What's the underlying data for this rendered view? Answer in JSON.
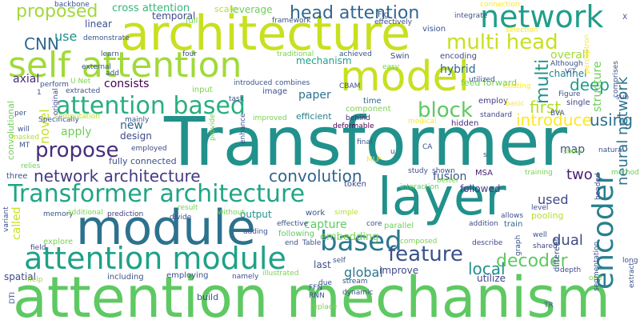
{
  "words": [
    {
      "text": "Transformer",
      "color": "#21918c"
    },
    {
      "text": "attention mechanism",
      "color": "#5ec962"
    },
    {
      "text": "architecture",
      "color": "#c8e020"
    },
    {
      "text": "module",
      "color": "#2c728e"
    },
    {
      "text": "layer",
      "color": "#21918c"
    },
    {
      "text": "self attention",
      "color": "#a0da39"
    },
    {
      "text": "model",
      "color": "#c8e020"
    },
    {
      "text": "Transformer architecture",
      "color": "#21a585"
    },
    {
      "text": "attention module",
      "color": "#1fa187"
    },
    {
      "text": "network",
      "color": "#1f9e89"
    },
    {
      "text": "attention based",
      "color": "#29af7f"
    },
    {
      "text": "encoder",
      "color": "#277f8e"
    },
    {
      "text": "based",
      "color": "#2a788e"
    },
    {
      "text": "feature",
      "color": "#3b528b"
    },
    {
      "text": "block",
      "color": "#5ec962"
    },
    {
      "text": "head attention",
      "color": "#31688e"
    },
    {
      "text": "multi head",
      "color": "#c8e020"
    },
    {
      "text": "propose",
      "color": "#472d7b"
    },
    {
      "text": "network architecture",
      "color": "#443983"
    },
    {
      "text": "decoder",
      "color": "#5ec962"
    },
    {
      "text": "neural network",
      "color": "#2c728e"
    },
    {
      "text": "proposed",
      "color": "#a0da39"
    },
    {
      "text": "CNN",
      "color": "#31688e"
    },
    {
      "text": "convolution",
      "color": "#33638d"
    },
    {
      "text": "local",
      "color": "#21918c"
    },
    {
      "text": "introduce",
      "color": "#fde725"
    },
    {
      "text": "using",
      "color": "#2c728e"
    },
    {
      "text": "first",
      "color": "#b5de2b"
    },
    {
      "text": "multi",
      "color": "#21918c"
    },
    {
      "text": "deep",
      "color": "#1f9e89"
    },
    {
      "text": "dual",
      "color": "#3e4989"
    },
    {
      "text": "two",
      "color": "#482173"
    },
    {
      "text": "cross attention",
      "color": "#35b779"
    },
    {
      "text": "consists",
      "color": "#440154"
    },
    {
      "text": "novel",
      "color": "#c8e020"
    },
    {
      "text": "use",
      "color": "#21918c"
    },
    {
      "text": "mechanism",
      "color": "#1fa187"
    },
    {
      "text": "hybrid",
      "color": "#31688e"
    },
    {
      "text": "paper",
      "color": "#2c728e"
    },
    {
      "text": "fusion",
      "color": "#3b528b"
    },
    {
      "text": "global",
      "color": "#2a788e"
    },
    {
      "text": "efficient",
      "color": "#26828e"
    },
    {
      "text": "design",
      "color": "#3e4989"
    },
    {
      "text": "new",
      "color": "#31688e"
    },
    {
      "text": "apply",
      "color": "#6ece58"
    },
    {
      "text": "structure",
      "color": "#6ece58"
    },
    {
      "text": "map",
      "color": "#3b528b"
    },
    {
      "text": "used",
      "color": "#3e4989"
    },
    {
      "text": "capture",
      "color": "#5ec962"
    },
    {
      "text": "embedding",
      "color": "#7ad151"
    },
    {
      "text": "output",
      "color": "#21918c"
    },
    {
      "text": "last",
      "color": "#3b528b"
    },
    {
      "text": "improve",
      "color": "#3e4989"
    },
    {
      "text": "utilize",
      "color": "#414487"
    },
    {
      "text": "called",
      "color": "#c8e020"
    },
    {
      "text": "spatial",
      "color": "#3e4989"
    },
    {
      "text": "overall",
      "color": "#a0da39"
    },
    {
      "text": "channel",
      "color": "#26828e"
    },
    {
      "text": "followed",
      "color": "#443983"
    },
    {
      "text": "temporal",
      "color": "#3e4989"
    },
    {
      "text": "linear",
      "color": "#3b528b"
    },
    {
      "text": "leverage",
      "color": "#6ece58"
    },
    {
      "text": "scale",
      "color": "#b5de2b"
    },
    {
      "text": "full",
      "color": "#7ad151"
    },
    {
      "text": "Fig",
      "color": "#3b528b"
    },
    {
      "text": "vision",
      "color": "#3b528b"
    },
    {
      "text": "framework",
      "color": "#3b528b"
    },
    {
      "text": "effectively",
      "color": "#3e4989"
    },
    {
      "text": "connection",
      "color": "#fde725"
    },
    {
      "text": "backbone",
      "color": "#3b528b"
    },
    {
      "text": "convolutional",
      "color": "#6ece58"
    },
    {
      "text": "axial",
      "color": "#472d7b"
    },
    {
      "text": "feed forward",
      "color": "#6ece58"
    },
    {
      "text": "Swin",
      "color": "#3e4989"
    },
    {
      "text": "encoding",
      "color": "#3e4989"
    },
    {
      "text": "image",
      "color": "#3b528b"
    },
    {
      "text": "input",
      "color": "#7ad151"
    },
    {
      "text": "time",
      "color": "#31688e"
    },
    {
      "text": "employ",
      "color": "#443983"
    },
    {
      "text": "single",
      "color": "#3e4989"
    },
    {
      "text": "standard",
      "color": "#3e4989"
    },
    {
      "text": "hidden",
      "color": "#472d7b"
    },
    {
      "text": "component",
      "color": "#7ad151"
    },
    {
      "text": "behind",
      "color": "#472d7b"
    },
    {
      "text": "deformable",
      "color": "#440154"
    },
    {
      "text": "MSA",
      "color": "#482173"
    },
    {
      "text": "token",
      "color": "#3e4989"
    },
    {
      "text": "interaction",
      "color": "#5ec962"
    },
    {
      "text": "study",
      "color": "#3b528b"
    },
    {
      "text": "shown",
      "color": "#3b528b"
    },
    {
      "text": "better",
      "color": "#7ad151"
    },
    {
      "text": "training",
      "color": "#7ad151"
    },
    {
      "text": "method",
      "color": "#6ece58"
    },
    {
      "text": "natural",
      "color": "#3b528b"
    },
    {
      "text": "pooling",
      "color": "#b5de2b"
    },
    {
      "text": "level",
      "color": "#3b528b"
    },
    {
      "text": "train",
      "color": "#31688e"
    },
    {
      "text": "well",
      "color": "#3b528b"
    },
    {
      "text": "shared",
      "color": "#3e4989"
    },
    {
      "text": "work",
      "color": "#3b528b"
    },
    {
      "text": "following",
      "color": "#5ec962"
    },
    {
      "text": "effective",
      "color": "#3b528b"
    },
    {
      "text": "adding",
      "color": "#3b528b"
    },
    {
      "text": "simple",
      "color": "#b5de2b"
    },
    {
      "text": "parallel",
      "color": "#6ece58"
    },
    {
      "text": "core",
      "color": "#3b528b"
    },
    {
      "text": "composed",
      "color": "#7ad151"
    },
    {
      "text": "addition",
      "color": "#3e4989"
    },
    {
      "text": "allows",
      "color": "#3b528b"
    },
    {
      "text": "different",
      "color": "#3b528b"
    },
    {
      "text": "memory",
      "color": "#3b528b"
    },
    {
      "text": "prediction",
      "color": "#443983"
    },
    {
      "text": "additional",
      "color": "#7ad151"
    },
    {
      "text": "variant",
      "color": "#3b528b"
    },
    {
      "text": "explore",
      "color": "#7ad151"
    },
    {
      "text": "field",
      "color": "#3e4989"
    },
    {
      "text": "including",
      "color": "#3b528b"
    },
    {
      "text": "employing",
      "color": "#3b528b"
    },
    {
      "text": "build",
      "color": "#3b528b"
    },
    {
      "text": "namely",
      "color": "#3b528b"
    },
    {
      "text": "illustrated",
      "color": "#7ad151"
    },
    {
      "text": "dynamic",
      "color": "#3b528b"
    },
    {
      "text": "stream",
      "color": "#3b528b"
    },
    {
      "text": "replace",
      "color": "#7ad151"
    },
    {
      "text": "FFN",
      "color": "#3b528b"
    },
    {
      "text": "RNN",
      "color": "#3b528b"
    },
    {
      "text": "Table",
      "color": "#3b528b"
    },
    {
      "text": "result",
      "color": "#7ad151"
    },
    {
      "text": "divide",
      "color": "#3b528b"
    },
    {
      "text": "end",
      "color": "#3b528b"
    },
    {
      "text": "due",
      "color": "#3b528b"
    },
    {
      "text": "describe",
      "color": "#3e4989"
    },
    {
      "text": "depth",
      "color": "#3e4989"
    },
    {
      "text": "one",
      "color": "#7ad151"
    },
    {
      "text": "TR",
      "color": "#3b528b"
    },
    {
      "text": "help",
      "color": "#a0da39"
    },
    {
      "text": "DTI",
      "color": "#3b528b"
    },
    {
      "text": "graph",
      "color": "#3b528b"
    },
    {
      "text": "long",
      "color": "#3b528b"
    },
    {
      "text": "extract",
      "color": "#3b528b"
    },
    {
      "text": "segmentation",
      "color": "#3b528b"
    },
    {
      "text": "headed",
      "color": "#3e4989"
    },
    {
      "text": "relies",
      "color": "#6ece58"
    },
    {
      "text": "three",
      "color": "#3b528b"
    },
    {
      "text": "fully connected",
      "color": "#3b528b"
    },
    {
      "text": "employed",
      "color": "#3e4989"
    },
    {
      "text": "mainly",
      "color": "#3b528b"
    },
    {
      "text": "Specifically",
      "color": "#3b528b"
    },
    {
      "text": "computation",
      "color": "#b5de2b"
    },
    {
      "text": "perform",
      "color": "#3b528b"
    },
    {
      "text": "extracted",
      "color": "#3b528b"
    },
    {
      "text": "original",
      "color": "#3e4989"
    },
    {
      "text": "masked",
      "color": "#b5de2b"
    },
    {
      "text": "will",
      "color": "#3b528b"
    },
    {
      "text": "MT",
      "color": "#3b528b"
    },
    {
      "text": "per",
      "color": "#3b528b"
    },
    {
      "text": "U Net",
      "color": "#7ad151"
    },
    {
      "text": "introduced",
      "color": "#3b528b"
    },
    {
      "text": "combines",
      "color": "#3b528b"
    },
    {
      "text": "CBAM",
      "color": "#3b528b"
    },
    {
      "text": "traditional",
      "color": "#7ad151"
    },
    {
      "text": "achieved",
      "color": "#3b528b"
    },
    {
      "text": "easy",
      "color": "#7ad151"
    },
    {
      "text": "four",
      "color": "#3b528b"
    },
    {
      "text": "learn",
      "color": "#3b528b"
    },
    {
      "text": "demonstrate",
      "color": "#3b528b"
    },
    {
      "text": "integrate",
      "color": "#3b528b"
    },
    {
      "text": "selection",
      "color": "#fde725"
    },
    {
      "text": "perceptron",
      "color": "#fde725"
    },
    {
      "text": "Although",
      "color": "#3b528b"
    },
    {
      "text": "ViT",
      "color": "#3b528b"
    },
    {
      "text": "comprises",
      "color": "#3b528b"
    },
    {
      "text": "existing",
      "color": "#fde725"
    },
    {
      "text": "utilized",
      "color": "#3b528b"
    },
    {
      "text": "basic",
      "color": "#fde725"
    },
    {
      "text": "Figure",
      "color": "#3b528b"
    },
    {
      "text": "sub",
      "color": "#3b528b"
    },
    {
      "text": "BVA",
      "color": "#3b528b"
    },
    {
      "text": "show",
      "color": "#7ad151"
    },
    {
      "text": "medical",
      "color": "#fde725"
    },
    {
      "text": "final",
      "color": "#3b528b"
    },
    {
      "text": "CA",
      "color": "#3b528b"
    },
    {
      "text": "MLP",
      "color": "#fde725"
    },
    {
      "text": "enhance",
      "color": "#3b528b"
    },
    {
      "text": "improved",
      "color": "#7ad151"
    },
    {
      "text": "provide",
      "color": "#7ad151"
    },
    {
      "text": "task",
      "color": "#3b528b"
    },
    {
      "text": "external",
      "color": "#3b528b"
    },
    {
      "text": "add",
      "color": "#3b528b"
    },
    {
      "text": "without",
      "color": "#7ad151"
    },
    {
      "text": "self",
      "color": "#3b528b"
    },
    {
      "text": "X",
      "color": "#3b528b"
    },
    {
      "text": "s",
      "color": "#3b528b"
    },
    {
      "text": "u",
      "color": "#3b528b"
    },
    {
      "text": "1",
      "color": "#3b528b"
    }
  ]
}
